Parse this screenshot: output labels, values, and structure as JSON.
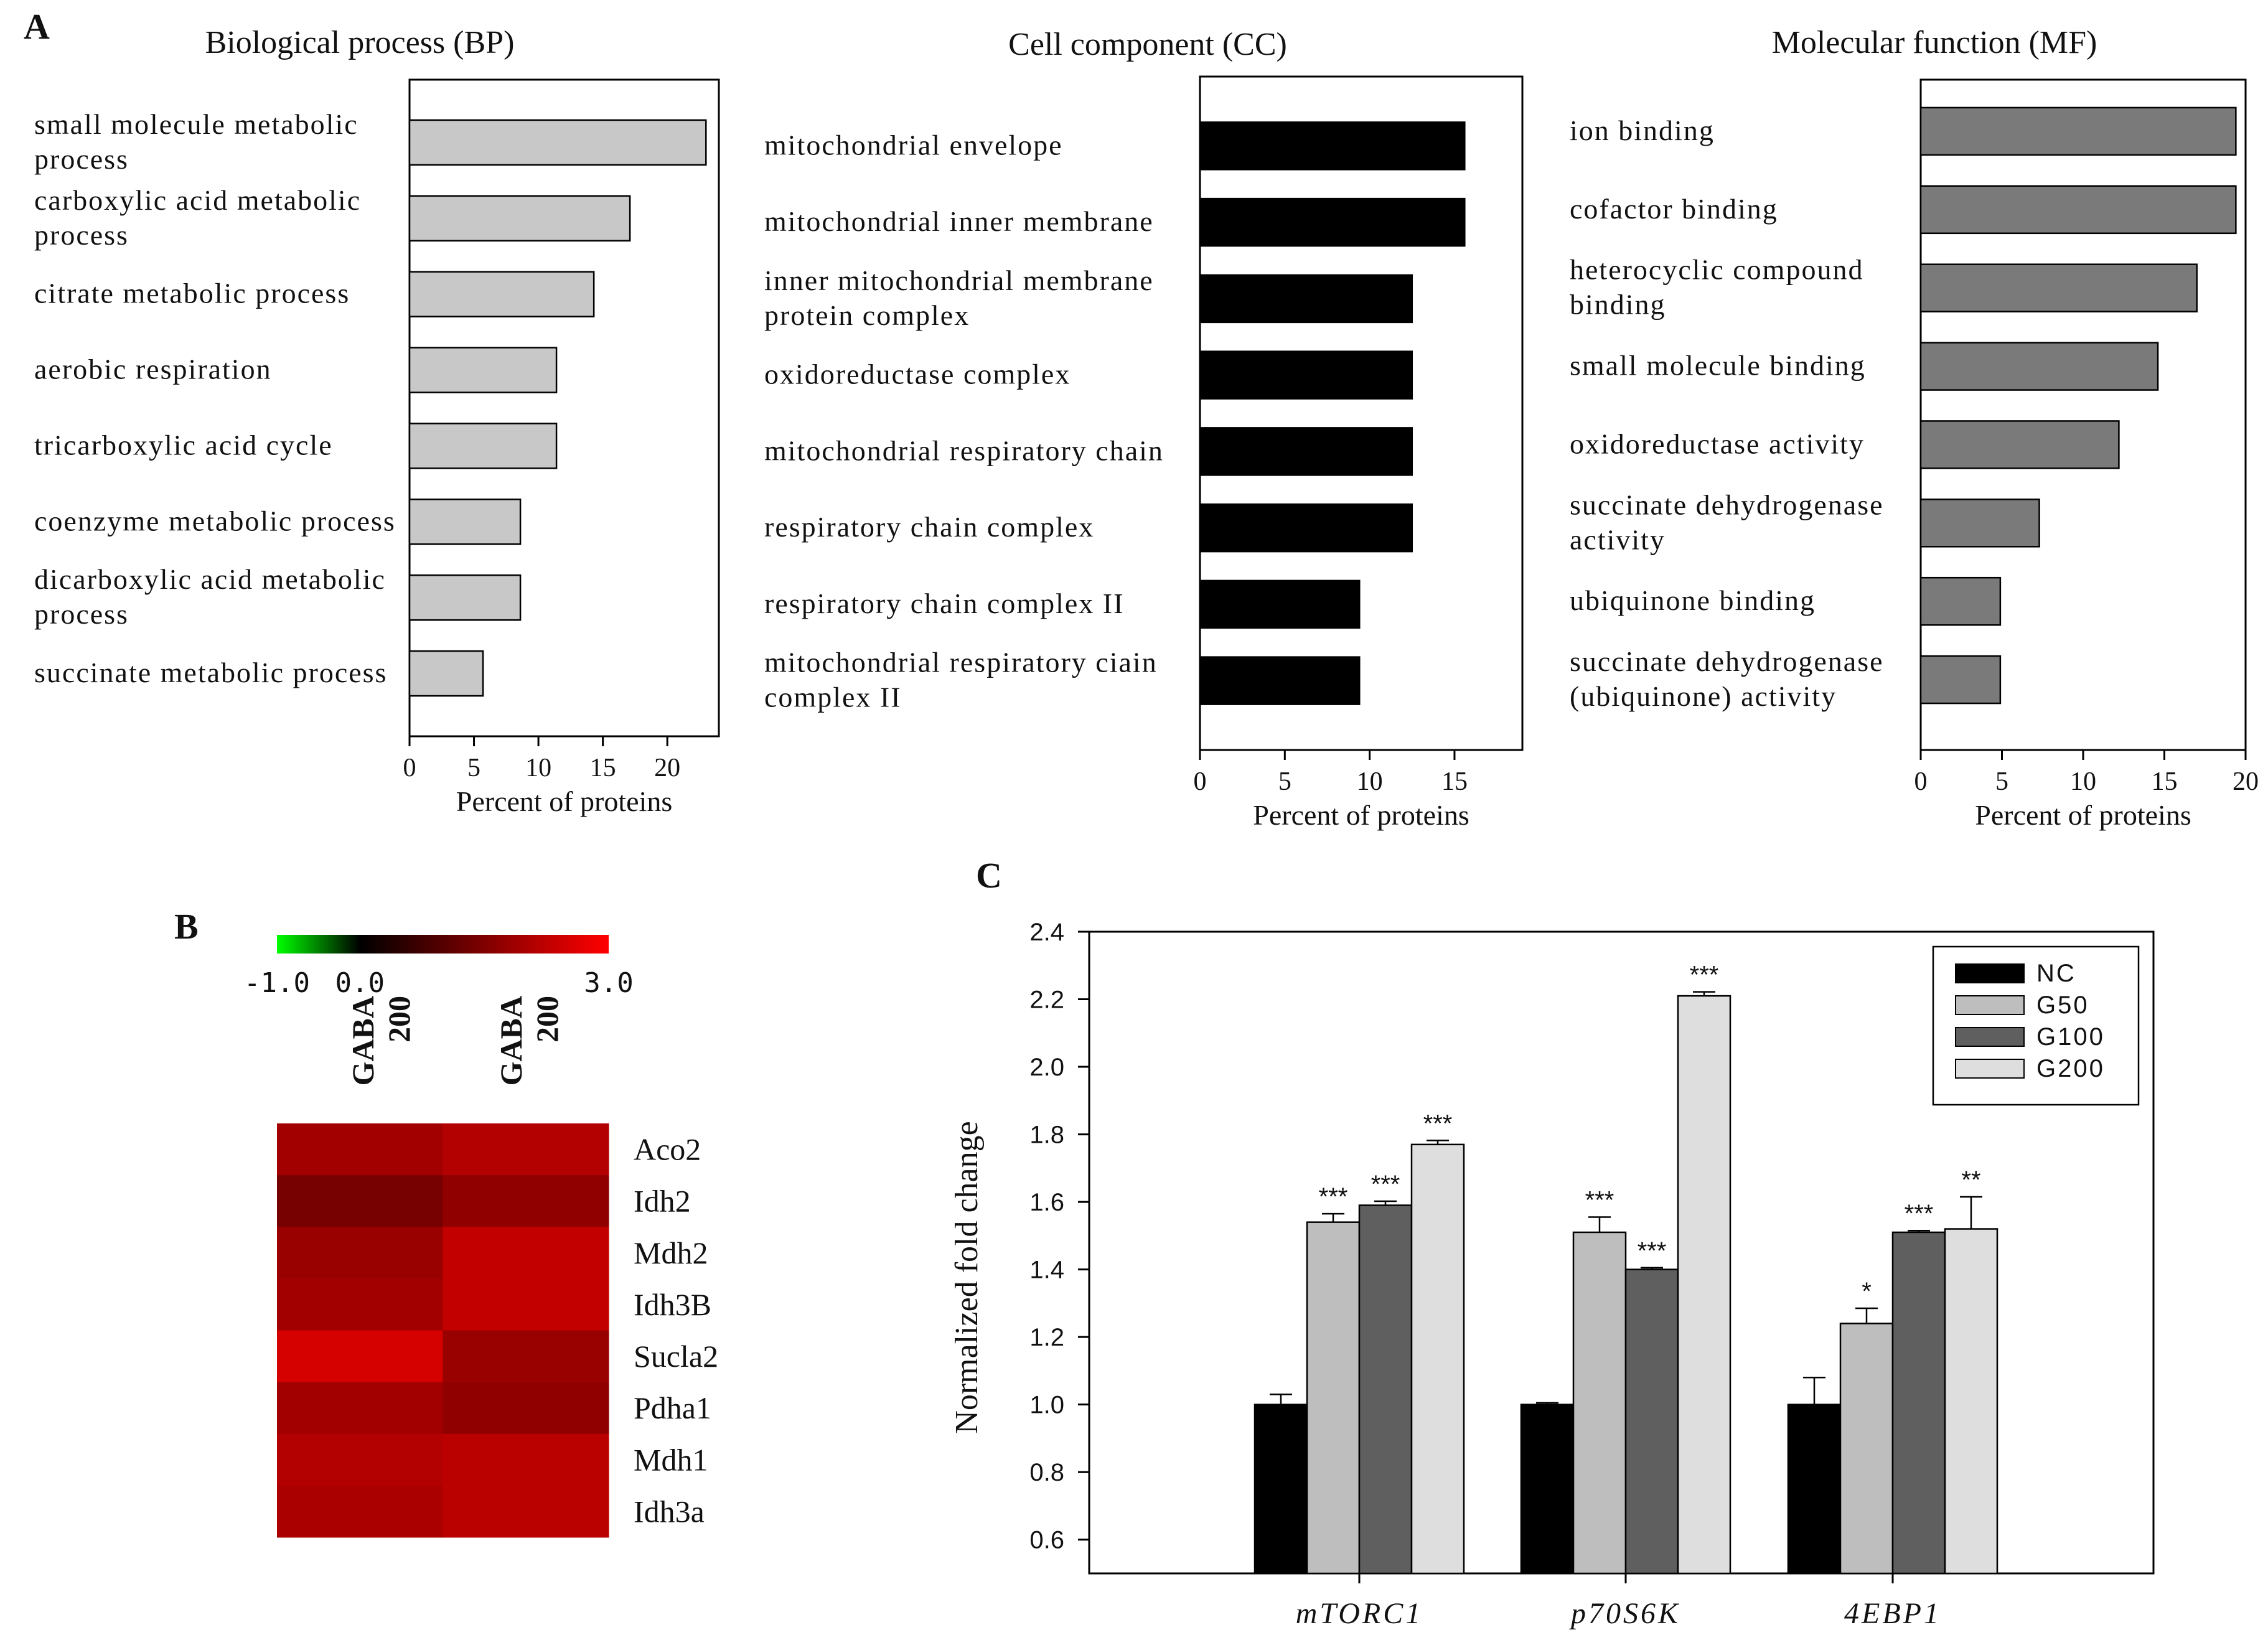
{
  "panel_letters": {
    "a": "A",
    "b": "B",
    "c": "C"
  },
  "colors": {
    "bp_bar": "#c8c8c8",
    "cc_bar": "#000000",
    "mf_bar": "#7a7a7a",
    "nc": "#000000",
    "g50": "#bebebe",
    "g100": "#5f5f5f",
    "g200": "#dedede",
    "heat_low": "#00ff00",
    "heat_mid": "#000000",
    "heat_high": "#ff0000"
  },
  "chart_data": [
    {
      "type": "bar",
      "orientation": "horizontal",
      "title": "Biological process (BP)",
      "xlabel": "Percent of proteins",
      "xlim": [
        0,
        24
      ],
      "xticks": [
        0,
        5,
        10,
        15,
        20
      ],
      "categories": [
        [
          "small molecule metabolic",
          "process"
        ],
        [
          "carboxylic acid metabolic",
          "process"
        ],
        [
          "citrate metabolic process"
        ],
        [
          "aerobic respiration"
        ],
        [
          "tricarboxylic acid cycle"
        ],
        [
          "coenzyme metabolic process"
        ],
        [
          "dicarboxylic acid metabolic",
          "process"
        ],
        [
          "succinate metabolic process"
        ]
      ],
      "values": [
        23.0,
        17.1,
        14.3,
        11.4,
        11.4,
        8.6,
        8.6,
        5.7
      ]
    },
    {
      "type": "bar",
      "orientation": "horizontal",
      "title": "Cell component (CC)",
      "xlabel": "Percent of proteins",
      "xlim": [
        0,
        19
      ],
      "xticks": [
        0,
        5,
        10,
        15
      ],
      "categories": [
        [
          "mitochondrial envelope"
        ],
        [
          "mitochondrial inner membrane"
        ],
        [
          "inner mitochondrial membrane",
          "protein complex"
        ],
        [
          "oxidoreductase complex"
        ],
        [
          "mitochondrial respiratory chain"
        ],
        [
          "respiratory chain complex"
        ],
        [
          "respiratory chain complex II"
        ],
        [
          "mitochondrial respiratory ciain",
          "complex II"
        ]
      ],
      "values": [
        15.6,
        15.6,
        12.5,
        12.5,
        12.5,
        12.5,
        9.4,
        9.4
      ]
    },
    {
      "type": "bar",
      "orientation": "horizontal",
      "title": "Molecular function (MF)",
      "xlabel": "Percent of proteins",
      "xlim": [
        0,
        20
      ],
      "xticks": [
        0,
        5,
        10,
        15,
        20
      ],
      "categories": [
        [
          "ion binding"
        ],
        [
          "cofactor binding"
        ],
        [
          "heterocyclic compound",
          "binding"
        ],
        [
          "small molecule binding"
        ],
        [
          "oxidoreductase activity"
        ],
        [
          "succinate dehydrogenase",
          "activity"
        ],
        [
          "ubiquinone binding"
        ],
        [
          "succinate dehydrogenase",
          "(ubiquinone) activity"
        ]
      ],
      "values": [
        19.4,
        19.4,
        17.0,
        14.6,
        12.2,
        7.3,
        4.9,
        4.9
      ]
    },
    {
      "type": "heatmap",
      "scale_min": -1.0,
      "scale_mid": 0.0,
      "scale_max": 3.0,
      "scale_labels": [
        "-1.0",
        "0.0",
        "3.0"
      ],
      "columns": [
        [
          "GABA",
          "200"
        ],
        [
          "GABA",
          "200"
        ]
      ],
      "rows": [
        "Aco2",
        "Idh2",
        "Mdh2",
        "Idh3B",
        "Sucla2",
        "Pdha1",
        "Mdh1",
        "Idh3a"
      ],
      "values": [
        [
          1.9,
          2.1
        ],
        [
          1.4,
          1.7
        ],
        [
          1.8,
          2.3
        ],
        [
          1.9,
          2.3
        ],
        [
          2.5,
          1.8
        ],
        [
          1.9,
          1.7
        ],
        [
          2.1,
          2.2
        ],
        [
          2.0,
          2.2
        ]
      ]
    },
    {
      "type": "bar",
      "orientation": "vertical",
      "ylabel": "Normalized fold change",
      "ylim": [
        0.5,
        2.4
      ],
      "yticks": [
        "0.6",
        "0.8",
        "1.0",
        "1.2",
        "1.4",
        "1.6",
        "1.8",
        "2.0",
        "2.2",
        "2.4"
      ],
      "categories": [
        "mTORC1",
        "p70S6K",
        "4EBP1"
      ],
      "legend_position": "top-right",
      "series": [
        {
          "name": "NC",
          "values": [
            1.0,
            1.0,
            1.0
          ],
          "errors": [
            0.03,
            0.005,
            0.08
          ],
          "sig": [
            "",
            "",
            ""
          ]
        },
        {
          "name": "G50",
          "values": [
            1.54,
            1.51,
            1.24
          ],
          "errors": [
            0.025,
            0.045,
            0.045
          ],
          "sig": [
            "***",
            "***",
            "*"
          ]
        },
        {
          "name": "G100",
          "values": [
            1.59,
            1.4,
            1.51
          ],
          "errors": [
            0.012,
            0.005,
            0.005
          ],
          "sig": [
            "***",
            "***",
            "***"
          ]
        },
        {
          "name": "G200",
          "values": [
            1.77,
            2.21,
            1.52
          ],
          "errors": [
            0.012,
            0.012,
            0.095
          ],
          "sig": [
            "***",
            "***",
            "**"
          ]
        }
      ]
    }
  ]
}
